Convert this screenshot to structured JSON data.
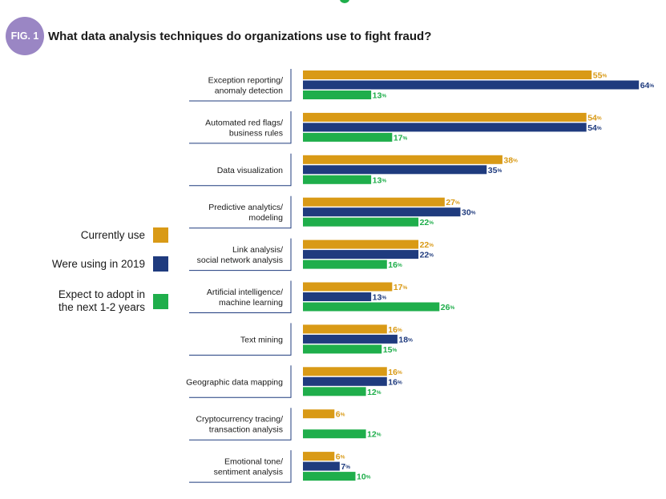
{
  "header": {
    "badge": "FIG. 1",
    "title": "What data analysis techniques do organizations use to fight fraud?"
  },
  "colors": {
    "current": "#d99a16",
    "was2019": "#1f3b7e",
    "expect": "#1fae4b",
    "badge": "#9a86c4"
  },
  "chart_data": {
    "type": "bar",
    "orientation": "horizontal",
    "title": "What data analysis techniques do organizations use to fight fraud?",
    "categories": [
      [
        "Exception reporting/",
        "anomaly detection"
      ],
      [
        "Automated red flags/",
        "business rules"
      ],
      [
        "Data visualization"
      ],
      [
        "Predictive analytics/",
        "modeling"
      ],
      [
        "Link analysis/",
        "social network analysis"
      ],
      [
        "Artificial intelligence/",
        "machine learning"
      ],
      [
        "Text mining"
      ],
      [
        "Geographic data mapping"
      ],
      [
        "Cryptocurrency tracing/",
        "transaction analysis"
      ],
      [
        "Emotional tone/",
        "sentiment analysis"
      ]
    ],
    "series": [
      {
        "name": "Currently use",
        "color": "#d99a16",
        "values": [
          55,
          54,
          38,
          27,
          22,
          17,
          16,
          16,
          6,
          6
        ]
      },
      {
        "name": "Were using in 2019",
        "color": "#1f3b7e",
        "values": [
          64,
          54,
          35,
          30,
          22,
          13,
          18,
          16,
          null,
          7
        ]
      },
      {
        "name": "Expect to adopt in the next 1-2 years",
        "color": "#1fae4b",
        "values": [
          13,
          17,
          13,
          22,
          16,
          26,
          15,
          12,
          12,
          10
        ]
      }
    ],
    "value_suffix": "%",
    "xlim": [
      0,
      64
    ],
    "legend": "left",
    "grid": false
  },
  "legend": [
    {
      "label": [
        "Currently use"
      ],
      "color": "#d99a16"
    },
    {
      "label": [
        "Were using in 2019"
      ],
      "color": "#1f3b7e"
    },
    {
      "label": [
        "Expect to adopt in",
        "the next 1-2 years"
      ],
      "color": "#1fae4b"
    }
  ]
}
